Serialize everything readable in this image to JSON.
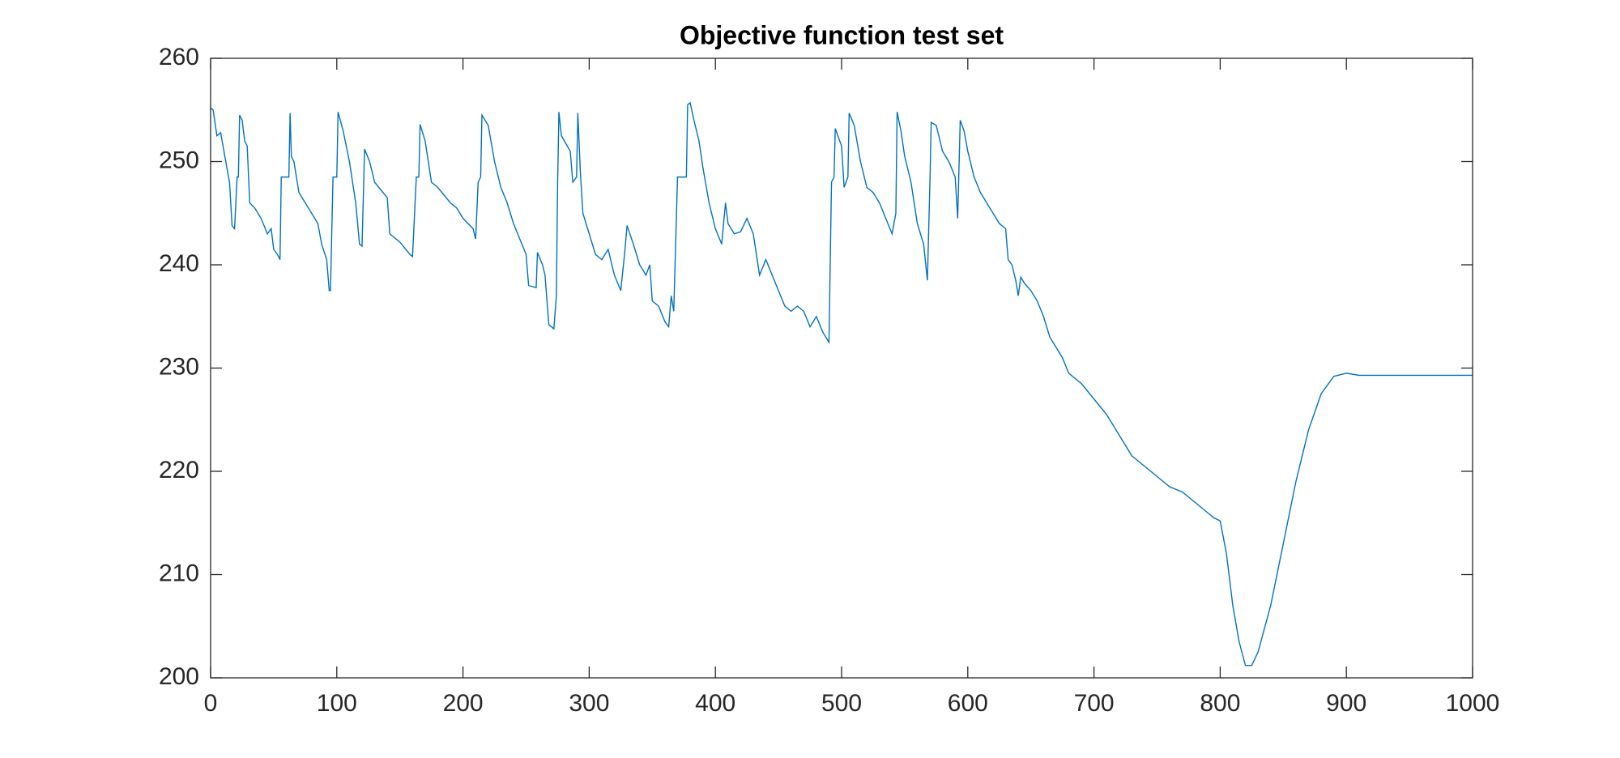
{
  "chart_data": {
    "type": "line",
    "title": "Objective function test set",
    "x": [
      0,
      2,
      5,
      8,
      12,
      15,
      17,
      19,
      21,
      22,
      23,
      25,
      27,
      29,
      31,
      35,
      40,
      45,
      48,
      50,
      53,
      55,
      56,
      62,
      63,
      64,
      66,
      70,
      75,
      80,
      85,
      88,
      92,
      94,
      95,
      97,
      100,
      101,
      105,
      110,
      115,
      118,
      120,
      122,
      126,
      130,
      140,
      142,
      150,
      158,
      160,
      163,
      165,
      166,
      170,
      175,
      180,
      190,
      195,
      200,
      208,
      210,
      212,
      214,
      215,
      220,
      225,
      230,
      235,
      240,
      245,
      250,
      252,
      258,
      259,
      263,
      265,
      268,
      272,
      274,
      275,
      276,
      278,
      285,
      287,
      290,
      291,
      293,
      295,
      300,
      305,
      310,
      315,
      320,
      325,
      328,
      330,
      335,
      340,
      345,
      348,
      350,
      355,
      360,
      363,
      365,
      367,
      370,
      377,
      378,
      380,
      383,
      387,
      390,
      395,
      400,
      405,
      408,
      410,
      415,
      420,
      425,
      430,
      435,
      440,
      445,
      450,
      455,
      460,
      465,
      470,
      475,
      480,
      485,
      490,
      492,
      494,
      495,
      500,
      502,
      505,
      506,
      510,
      515,
      520,
      525,
      530,
      535,
      540,
      543,
      544,
      547,
      550,
      555,
      560,
      565,
      568,
      570,
      571,
      575,
      580,
      585,
      590,
      592,
      594,
      597,
      600,
      605,
      610,
      615,
      620,
      625,
      630,
      632,
      635,
      638,
      640,
      642,
      645,
      650,
      655,
      660,
      665,
      670,
      675,
      680,
      690,
      700,
      710,
      720,
      730,
      740,
      750,
      760,
      770,
      780,
      790,
      795,
      800,
      805,
      810,
      815,
      820,
      825,
      830,
      840,
      850,
      860,
      870,
      880,
      890,
      900,
      910,
      1000
    ],
    "series": [
      {
        "color": "#0072bd",
        "values": [
          255.2,
          255,
          252.5,
          252.8,
          250,
          248,
          243.8,
          243.5,
          248.5,
          248.5,
          254.5,
          254,
          252,
          251.5,
          246,
          245.5,
          244.5,
          243,
          243.5,
          241.5,
          241,
          240.5,
          248.5,
          248.5,
          254.7,
          250.5,
          250,
          247,
          246,
          245,
          244,
          242,
          240.5,
          237.5,
          237.5,
          248.5,
          248.5,
          254.8,
          253,
          250,
          246,
          242,
          241.8,
          251.2,
          250,
          248,
          246.5,
          243,
          242.2,
          241,
          240.8,
          248.5,
          248.5,
          253.6,
          252,
          248,
          247.5,
          246,
          245.5,
          244.5,
          243.5,
          242.5,
          248,
          248.5,
          254.5,
          253.5,
          250,
          247.5,
          246,
          244,
          242.5,
          241,
          238,
          237.8,
          241.2,
          240,
          239,
          234.2,
          233.8,
          237,
          248,
          254.8,
          252.5,
          251,
          248,
          248.5,
          254.7,
          249,
          245,
          243,
          241,
          240.5,
          241.5,
          239,
          237.5,
          241,
          243.8,
          242,
          240,
          239,
          240,
          236.5,
          236,
          234.5,
          234,
          237,
          235.5,
          248.5,
          248.5,
          255.5,
          255.7,
          254,
          252,
          249.5,
          246,
          243.5,
          242,
          246,
          244,
          243,
          243.2,
          244.5,
          243,
          239,
          240.5,
          239,
          237.5,
          236,
          235.5,
          236,
          235.5,
          234,
          235,
          233.5,
          232.5,
          248,
          248.5,
          253.2,
          251.5,
          247.5,
          248.5,
          254.7,
          253.5,
          250,
          247.5,
          247,
          246,
          244.5,
          243,
          245,
          254.8,
          253,
          250.5,
          248,
          244,
          242,
          238.5,
          248,
          253.8,
          253.5,
          251,
          250,
          248.5,
          244.5,
          254,
          253,
          251,
          248.5,
          247,
          246,
          245,
          244,
          243.5,
          240.5,
          240,
          238.5,
          237,
          238.8,
          238.2,
          237.5,
          236.5,
          235,
          233,
          232,
          231,
          229.5,
          228.5,
          227,
          225.5,
          223.5,
          221.5,
          220.5,
          219.5,
          218.5,
          218,
          217,
          216,
          215.5,
          215.2,
          212,
          207,
          203.5,
          201.2,
          201.2,
          202.5,
          207,
          213,
          219,
          224,
          227.5,
          229.2,
          229.5,
          229.3,
          229.3
        ]
      }
    ],
    "xlim": [
      0,
      1000
    ],
    "xticks": [
      0,
      100,
      200,
      300,
      400,
      500,
      600,
      700,
      800,
      900,
      1000
    ],
    "ylim": [
      200,
      260
    ],
    "yticks": [
      200,
      210,
      220,
      230,
      240,
      250,
      260
    ]
  }
}
